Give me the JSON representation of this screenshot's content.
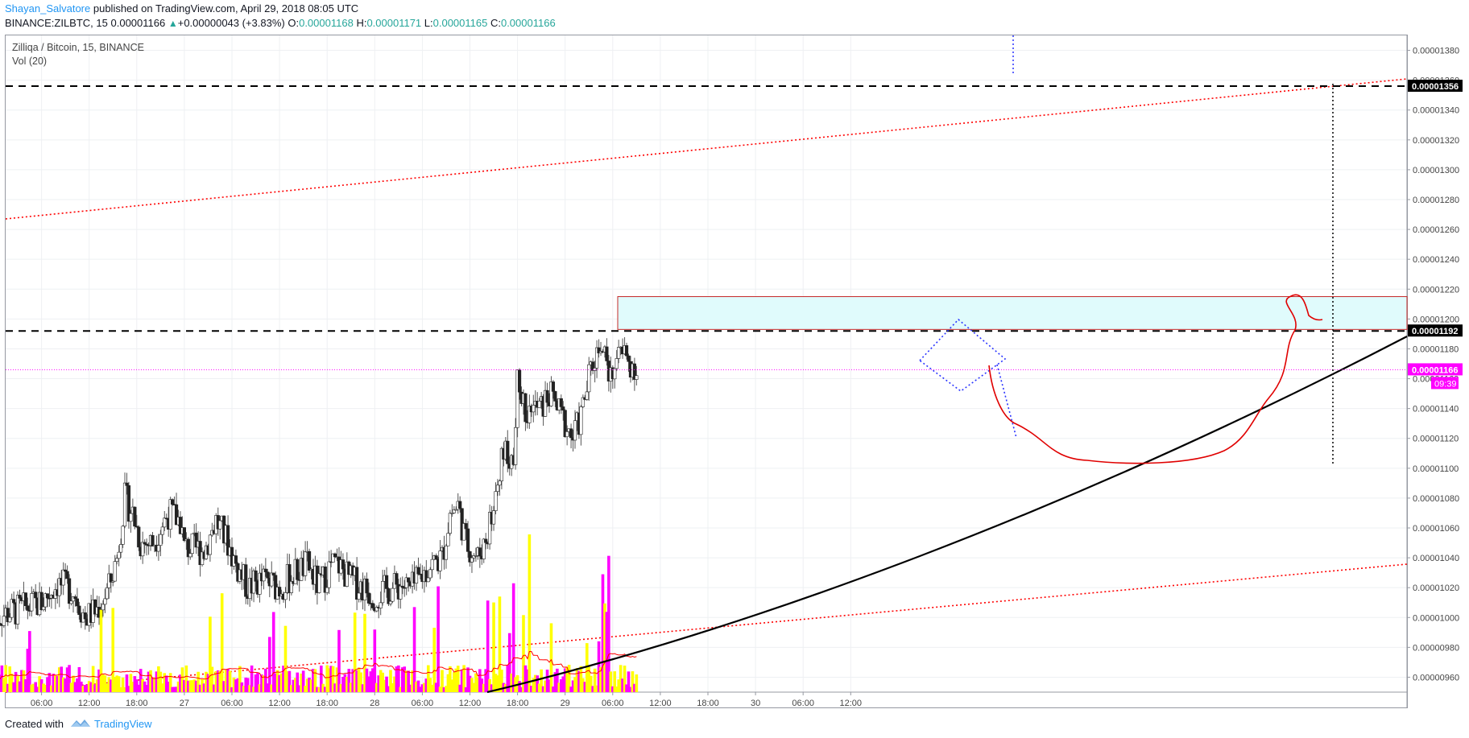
{
  "header": {
    "author": "Shayan_Salvatore",
    "published": " published on TradingView.com, April 29, 2018 08:05 UTC",
    "symbol": "BINANCE:ZILBTC, 15",
    "last": "0.00001166",
    "change": "+0.00000043 (+3.83%)",
    "open_label": "O:",
    "open": "0.00001168",
    "high_label": "H:",
    "high": "0.00001171",
    "low_label": "L:",
    "low": "0.00001165",
    "close_label": "C:",
    "close": "0.00001166"
  },
  "legend": {
    "title": "Zilliqa / Bitcoin, 15, BINANCE",
    "volume": "Vol (20)"
  },
  "footer": {
    "created": "Created with",
    "brand": "TradingView"
  },
  "colors": {
    "up": "#ffff00",
    "down": "#ff00ff",
    "candle_outline": "#555555",
    "ma": "#ff0000",
    "channel": "#ff0000",
    "curve": "#000000",
    "zone_fill": "#e0fbfc",
    "zone_border": "#c62828",
    "price_line": "#ff00ff",
    "author": "#2196f3"
  },
  "chart_data": {
    "type": "candlestick",
    "interval": "15",
    "y_axis": {
      "min": 9.5e-06,
      "max": 1.39e-05,
      "ticks": [
        "0.00000960",
        "0.00000980",
        "0.00001000",
        "0.00001020",
        "0.00001040",
        "0.00001060",
        "0.00001080",
        "0.00001100",
        "0.00001120",
        "0.00001140",
        "0.00001160",
        "0.00001180",
        "0.00001200",
        "0.00001220",
        "0.00001240",
        "0.00001260",
        "0.00001280",
        "0.00001300",
        "0.00001320",
        "0.00001340",
        "0.00001360",
        "0.00001380"
      ]
    },
    "x_axis": {
      "ticks": [
        "06:00",
        "12:00",
        "18:00",
        "27",
        "06:00",
        "12:00",
        "18:00",
        "28",
        "06:00",
        "12:00",
        "18:00",
        "29",
        "06:00",
        "12:00",
        "18:00",
        "30",
        "06:00",
        "12:00"
      ],
      "tick_positions_hours": [
        6,
        12,
        18,
        24,
        30,
        36,
        42,
        48,
        54,
        60,
        66,
        72,
        78,
        84,
        90,
        96,
        102,
        108
      ]
    },
    "price_labels": [
      {
        "value": 1.356e-05,
        "text": "0.00001356",
        "style": "black"
      },
      {
        "value": 1.192e-05,
        "text": "0.00001192",
        "style": "black"
      },
      {
        "value": 1.166e-05,
        "text": "0.00001166",
        "style": "magenta"
      }
    ],
    "countdown": "09:39",
    "candle_series": [
      {
        "h": 0.0,
        "c": 1.0
      },
      {
        "h": 6.0,
        "c": 1.01
      },
      {
        "h": 8.0,
        "c": 1.023
      },
      {
        "h": 10.0,
        "c": 1.018
      },
      {
        "h": 11.5,
        "c": 1.0
      },
      {
        "h": 13.0,
        "c": 1.005
      },
      {
        "h": 14.5,
        "c": 1.02
      },
      {
        "h": 15.5,
        "c": 1.04
      },
      {
        "h": 16.5,
        "c": 1.08
      },
      {
        "h": 17.5,
        "c": 1.07
      },
      {
        "h": 18.5,
        "c": 1.05
      },
      {
        "h": 20.0,
        "c": 1.05
      },
      {
        "h": 22.0,
        "c": 1.07
      },
      {
        "h": 23.5,
        "c": 1.065
      },
      {
        "h": 24.0,
        "c": 1.047
      },
      {
        "h": 26.5,
        "c": 1.045
      },
      {
        "h": 28.0,
        "c": 1.065
      },
      {
        "h": 29.5,
        "c": 1.05
      },
      {
        "h": 30.5,
        "c": 1.035
      },
      {
        "h": 32.0,
        "c": 1.02
      },
      {
        "h": 34.0,
        "c": 1.025
      },
      {
        "h": 36.0,
        "c": 1.02
      },
      {
        "h": 38.0,
        "c": 1.03
      },
      {
        "h": 39.5,
        "c": 1.035
      },
      {
        "h": 41.0,
        "c": 1.02
      },
      {
        "h": 42.5,
        "c": 1.035
      },
      {
        "h": 43.5,
        "c": 1.035
      },
      {
        "h": 45.0,
        "c": 1.025
      },
      {
        "h": 46.0,
        "c": 1.022
      },
      {
        "h": 48.0,
        "c": 1.015
      },
      {
        "h": 50.5,
        "c": 1.02
      },
      {
        "h": 51.5,
        "c": 1.022
      },
      {
        "h": 52.5,
        "c": 1.018
      },
      {
        "h": 55.0,
        "c": 1.035
      },
      {
        "h": 56.5,
        "c": 1.04
      },
      {
        "h": 57.5,
        "c": 1.07
      },
      {
        "h": 58.5,
        "c": 1.075
      },
      {
        "h": 59.5,
        "c": 1.05
      },
      {
        "h": 61.0,
        "c": 1.04
      },
      {
        "h": 62.5,
        "c": 1.06
      },
      {
        "h": 63.5,
        "c": 1.09
      },
      {
        "h": 64.5,
        "c": 1.115
      },
      {
        "h": 65.5,
        "c": 1.1
      },
      {
        "h": 66.0,
        "c": 1.155
      },
      {
        "h": 67.0,
        "c": 1.14
      },
      {
        "h": 69.0,
        "c": 1.14
      },
      {
        "h": 70.0,
        "c": 1.15
      },
      {
        "h": 71.0,
        "c": 1.14
      },
      {
        "h": 72.0,
        "c": 1.13
      },
      {
        "h": 73.0,
        "c": 1.12
      },
      {
        "h": 74.0,
        "c": 1.135
      },
      {
        "h": 75.0,
        "c": 1.16
      },
      {
        "h": 75.5,
        "c": 1.17
      },
      {
        "h": 76.5,
        "c": 1.185
      },
      {
        "h": 77.5,
        "c": 1.16
      },
      {
        "h": 78.5,
        "c": 1.18
      },
      {
        "h": 79.5,
        "c": 1.175
      },
      {
        "h": 80.5,
        "c": 1.17
      },
      {
        "h": 81.0,
        "c": 1.166
      }
    ],
    "volume_ma_label": "Vol (20)"
  }
}
